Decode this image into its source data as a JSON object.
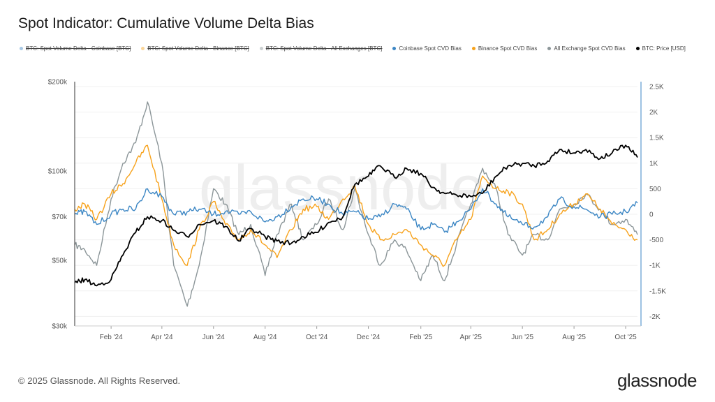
{
  "title": "Spot Indicator: Cumulative Volume Delta Bias",
  "legend": [
    {
      "label": "BTC: Spot Volume Delta - Coinbase [BTC]",
      "color": "#3b86c4",
      "hidden": true
    },
    {
      "label": "BTC: Spot Volume Delta - Binance [BTC]",
      "color": "#f7a21b",
      "hidden": true
    },
    {
      "label": "BTC: Spot Volume Delta - All Exchanges [BTC]",
      "color": "#8c9699",
      "hidden": true
    },
    {
      "label": "Coinbase Spot CVD Bias",
      "color": "#3b86c4",
      "hidden": false
    },
    {
      "label": "Binance Spot CVD Bias",
      "color": "#f7a21b",
      "hidden": false
    },
    {
      "label": "All Exchange Spot CVD Bias",
      "color": "#8c9699",
      "hidden": false
    },
    {
      "label": "BTC: Price [USD]",
      "color": "#000000",
      "hidden": false
    }
  ],
  "watermark": "glassnode",
  "footer": {
    "copyright": "© 2025 Glassnode. All Rights Reserved.",
    "brand": "glassnode"
  },
  "chart_data": {
    "type": "line",
    "title": "Spot Indicator: Cumulative Volume Delta Bias",
    "x_ticks": [
      "Feb '24",
      "Apr '24",
      "Jun '24",
      "Aug '24",
      "Oct '24",
      "Dec '24",
      "Feb '25",
      "Apr '25",
      "Jun '25",
      "Aug '25",
      "Oct '25"
    ],
    "left_axis": {
      "scale": "log",
      "range": [
        30000,
        200000
      ],
      "ticks": [
        {
          "v": 200000,
          "label": "$200k"
        },
        {
          "v": 100000,
          "label": "$100k"
        },
        {
          "v": 70000,
          "label": "$70k"
        },
        {
          "v": 50000,
          "label": "$50k"
        },
        {
          "v": 30000,
          "label": "$30k"
        }
      ]
    },
    "right_axis": {
      "scale": "linear",
      "range": [
        -2.1,
        2.6
      ],
      "unit": "K",
      "ticks": [
        {
          "v": 2.5,
          "label": "2.5K"
        },
        {
          "v": 2,
          "label": "2K"
        },
        {
          "v": 1.5,
          "label": "1.5K"
        },
        {
          "v": 1,
          "label": "1K"
        },
        {
          "v": 0.5,
          "label": "500"
        },
        {
          "v": 0,
          "label": "0"
        },
        {
          "v": -0.5,
          "label": "-500"
        },
        {
          "v": -1,
          "label": "-1K"
        },
        {
          "v": -1.5,
          "label": "-1.5K"
        },
        {
          "v": -2,
          "label": "-2K"
        }
      ]
    },
    "grid": true,
    "x": [
      "2023-12-20",
      "2024-01-01",
      "2024-01-15",
      "2024-02-01",
      "2024-02-15",
      "2024-03-01",
      "2024-03-15",
      "2024-04-01",
      "2024-04-15",
      "2024-05-01",
      "2024-05-15",
      "2024-06-01",
      "2024-06-15",
      "2024-07-01",
      "2024-07-15",
      "2024-08-01",
      "2024-08-15",
      "2024-09-01",
      "2024-09-15",
      "2024-10-01",
      "2024-10-15",
      "2024-11-01",
      "2024-11-15",
      "2024-12-01",
      "2024-12-15",
      "2025-01-01",
      "2025-01-15",
      "2025-02-01",
      "2025-02-15",
      "2025-03-01",
      "2025-03-15",
      "2025-04-01",
      "2025-04-15",
      "2025-05-01",
      "2025-05-15",
      "2025-06-01",
      "2025-06-15",
      "2025-07-01",
      "2025-07-15",
      "2025-08-01",
      "2025-08-15",
      "2025-09-01",
      "2025-09-15",
      "2025-10-01",
      "2025-10-15"
    ],
    "series": [
      {
        "name": "Coinbase Spot CVD Bias",
        "axis": "right",
        "color": "#3b86c4",
        "values": [
          0.0,
          0.05,
          -0.2,
          0,
          0.1,
          0.1,
          0.5,
          0.35,
          0.0,
          0.05,
          0.1,
          0,
          0.05,
          0.0,
          0.05,
          -0.15,
          -0.05,
          0.15,
          0.3,
          0.3,
          0.2,
          0.0,
          0.05,
          -0.1,
          -0.05,
          0.2,
          0.1,
          -0.3,
          -0.2,
          -0.35,
          -0.15,
          0.1,
          0.5,
          0.2,
          -0.05,
          -0.2,
          -0.25,
          -0.05,
          0.3,
          0.15,
          0.1,
          -0.05,
          0.0,
          0.05,
          0.22
        ]
      },
      {
        "name": "Binance Spot CVD Bias",
        "axis": "right",
        "color": "#f7a21b",
        "values": [
          0.1,
          0.2,
          -0.1,
          0.4,
          0.6,
          1.0,
          1.35,
          0.3,
          -0.6,
          -1.0,
          -0.3,
          0.25,
          -0.2,
          -0.5,
          -0.3,
          -0.6,
          -0.85,
          -0.3,
          0.1,
          0.15,
          -0.1,
          0.3,
          0.55,
          -0.2,
          -0.5,
          -0.4,
          -0.3,
          -0.6,
          -0.8,
          -1.0,
          -0.5,
          -0.1,
          0.75,
          0.5,
          0.45,
          0.2,
          -0.5,
          -0.3,
          0.0,
          0.2,
          0.4,
          0.1,
          -0.2,
          -0.3,
          -0.5
        ]
      },
      {
        "name": "All Exchange Spot CVD Bias",
        "axis": "right",
        "color": "#8c9699",
        "values": [
          -0.6,
          -0.7,
          -1.0,
          0.3,
          1.0,
          1.4,
          2.2,
          1.0,
          -1.0,
          -1.8,
          -1.0,
          0.5,
          0.2,
          -0.4,
          -0.2,
          -1.2,
          -0.4,
          0.2,
          -0.5,
          -0.2,
          0.3,
          -0.3,
          0.5,
          -0.4,
          -1.0,
          -0.5,
          -0.7,
          -1.3,
          -0.8,
          -1.3,
          -0.6,
          0.2,
          0.9,
          0.5,
          -0.4,
          -0.8,
          -0.4,
          -0.5,
          0.1,
          0.2,
          0.4,
          0.1,
          -0.2,
          -0.1,
          -0.4
        ]
      },
      {
        "name": "BTC: Price [USD]",
        "axis": "left",
        "color": "#000000",
        "values": [
          42000,
          43000,
          41000,
          43000,
          52000,
          62000,
          70000,
          68000,
          63000,
          60000,
          66000,
          68000,
          65000,
          58000,
          64000,
          60000,
          58000,
          57000,
          60000,
          62000,
          67000,
          70000,
          90000,
          96000,
          104000,
          95000,
          102000,
          98000,
          88000,
          84000,
          83000,
          82000,
          84000,
          96000,
          104000,
          106000,
          104000,
          108000,
          118000,
          115000,
          118000,
          110000,
          115000,
          122000,
          111000
        ]
      }
    ]
  }
}
